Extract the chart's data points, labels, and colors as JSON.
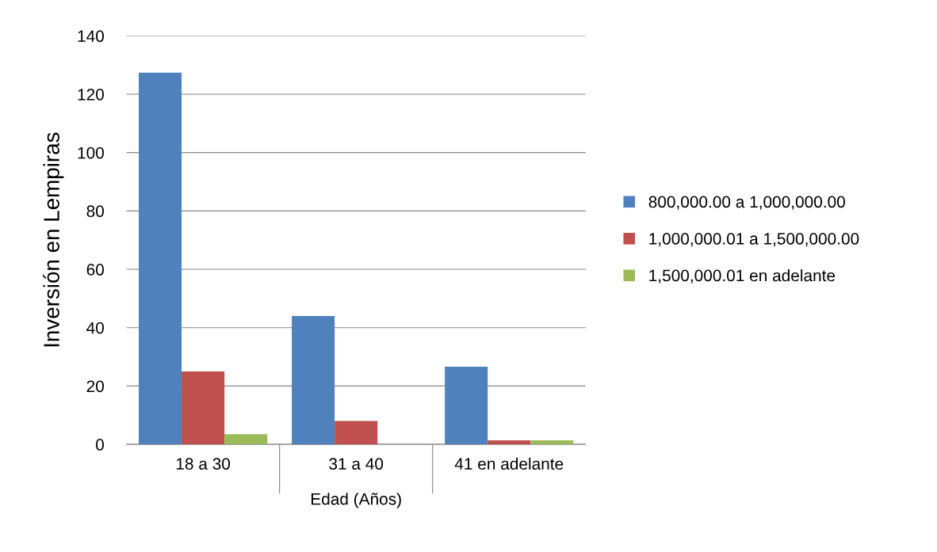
{
  "chart_data": {
    "type": "bar",
    "xlabel": "Edad (Años)",
    "ylabel": "Inversión en Lempiras",
    "categories": [
      "18 a 30",
      "31 a 40",
      "41 en adelante"
    ],
    "series": [
      {
        "name": "800,000.00 a 1,000,000.00",
        "color": "#4f81bd",
        "values": [
          127.4,
          44,
          26.6
        ]
      },
      {
        "name": "1,000,000.01 a 1,500,000.00",
        "color": "#c0504d",
        "values": [
          25,
          8,
          1.4
        ]
      },
      {
        "name": "1,500,000.01 en adelante",
        "color": "#9bbb59",
        "values": [
          3.5,
          0,
          1.4
        ]
      }
    ],
    "ylim": [
      0,
      140
    ],
    "yticks": [
      0,
      20,
      40,
      60,
      80,
      100,
      120,
      140
    ],
    "grid": "y",
    "legend": "right"
  }
}
